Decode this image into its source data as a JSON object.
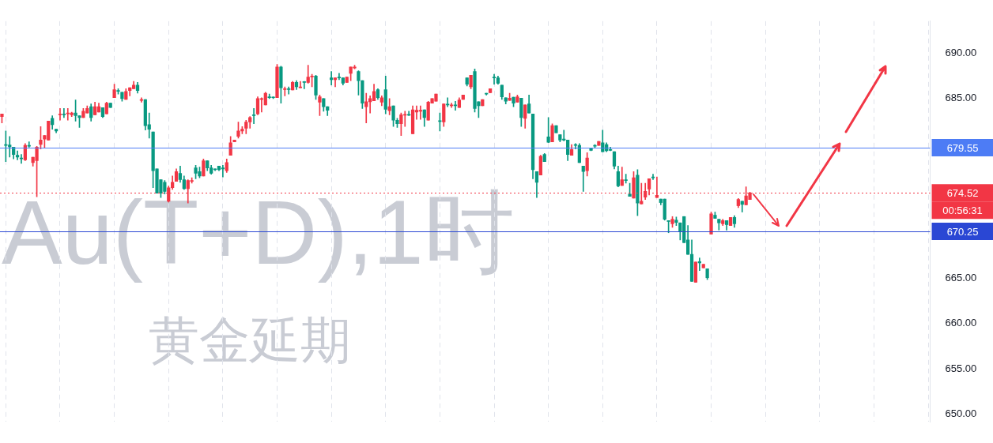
{
  "chart_data": {
    "type": "candlestick",
    "title": "Au(T+D),1时",
    "subtitle": "黄金延期",
    "categories": [
      null,
      null,
      null,
      null,
      null,
      null,
      null,
      null,
      null,
      null,
      null,
      null,
      null,
      null,
      null,
      null,
      null,
      null,
      null,
      null,
      null,
      null,
      null,
      null,
      null,
      null,
      null,
      null,
      null,
      null,
      null,
      null,
      null,
      null,
      null,
      null,
      null,
      null,
      null,
      null,
      null,
      null,
      null,
      null,
      null,
      null,
      null,
      null,
      null,
      null,
      null,
      null,
      null,
      null,
      null,
      null,
      null,
      null,
      null,
      null,
      null,
      null,
      null,
      null,
      null,
      null,
      null,
      null,
      null,
      null,
      null,
      null,
      null,
      null,
      null,
      null,
      null,
      null,
      null,
      null,
      null,
      null,
      null,
      null,
      null,
      null,
      null,
      null,
      null,
      null,
      null,
      null,
      null,
      null,
      null,
      null,
      null,
      null,
      null,
      null,
      null,
      null,
      null,
      null,
      null,
      null,
      null,
      null,
      null,
      null,
      null,
      null,
      null,
      null,
      null,
      null,
      null,
      null,
      null,
      null,
      null,
      null,
      null,
      null,
      null,
      null,
      null,
      null,
      null,
      null,
      null,
      null,
      null,
      null,
      null,
      null,
      null,
      null,
      null,
      null,
      null,
      null,
      null,
      null,
      null,
      null,
      null,
      null,
      null,
      null,
      null,
      null,
      null,
      null,
      null,
      null,
      null,
      null,
      null,
      null,
      null,
      null,
      null,
      null,
      null,
      null,
      null,
      null,
      null,
      null,
      null,
      null,
      null,
      null,
      null,
      null,
      null,
      null,
      null,
      null,
      null,
      null,
      null,
      null,
      null,
      null,
      null,
      null,
      null,
      null,
      null,
      null,
      null,
      null,
      null,
      null,
      null,
      null,
      null,
      null,
      null,
      null,
      null,
      null,
      null,
      null,
      null,
      null,
      null,
      null,
      null,
      null,
      null,
      null,
      null,
      null,
      null,
      null,
      null,
      null,
      null,
      null,
      null,
      null,
      null,
      null,
      null,
      null,
      null,
      null,
      null,
      null,
      null,
      null,
      null,
      null,
      null,
      null,
      null,
      null
    ],
    "ohlc": [
      [
        683.0,
        683.3,
        682.3,
        683.3
      ],
      [
        679.9,
        681.4,
        678.0,
        679.8
      ],
      [
        679.85,
        680.8,
        678.5,
        679.65
      ],
      [
        679.6,
        679.6,
        678.3,
        678.8
      ],
      [
        678.7,
        679.2,
        678.2,
        678.5
      ],
      [
        678.4,
        678.8,
        677.8,
        678.3
      ],
      [
        678.2,
        680.0,
        678.1,
        679.8
      ],
      [
        679.8,
        680.2,
        679.6,
        679.7
      ],
      [
        677.9,
        678.5,
        677.5,
        678.5
      ],
      [
        678.1,
        679.7,
        674.1,
        679.6
      ],
      [
        679.9,
        681.9,
        679.4,
        680.4
      ],
      [
        680.5,
        680.9,
        679.5,
        680.9
      ],
      [
        680.4,
        682.5,
        680.4,
        682.5
      ],
      [
        682.8,
        683.1,
        681.6,
        682.1
      ],
      [
        681.6,
        681.6,
        681.2,
        681.4
      ],
      [
        683.2,
        683.9,
        682.6,
        683.3
      ],
      [
        683.3,
        683.9,
        682.9,
        683.2
      ],
      [
        683.3,
        683.9,
        682.6,
        683.4
      ],
      [
        683.2,
        683.5,
        683.0,
        683.4
      ],
      [
        683.4,
        684.85,
        682.5,
        683.1
      ],
      [
        683.1,
        683.1,
        681.8,
        682.9
      ],
      [
        682.9,
        683.9,
        682.9,
        683.6
      ],
      [
        683.4,
        684.2,
        683.4,
        683.9
      ],
      [
        684.1,
        684.4,
        682.5,
        682.9
      ],
      [
        683.2,
        684.6,
        683.2,
        684.1
      ],
      [
        683.5,
        684.5,
        683.5,
        684.1
      ],
      [
        684.0,
        684.0,
        682.9,
        683.0
      ],
      [
        683.3,
        684.6,
        683.3,
        684.5
      ],
      [
        684.5,
        684.5,
        684.0,
        684.0
      ],
      [
        685.1,
        686.6,
        685.1,
        686.0
      ],
      [
        685.9,
        686.1,
        685.5,
        685.8
      ],
      [
        685.7,
        685.7,
        684.7,
        685.0
      ],
      [
        684.9,
        686.1,
        684.9,
        685.8
      ],
      [
        685.9,
        686.2,
        685.3,
        686.2
      ],
      [
        686.1,
        686.9,
        686.1,
        686.5
      ],
      [
        686.5,
        686.8,
        685.6,
        685.9
      ],
      [
        684.8,
        685.1,
        684.6,
        684.9
      ],
      [
        684.9,
        684.9,
        681.5,
        682.0
      ],
      [
        682.1,
        683.4,
        680.6,
        681.6
      ],
      [
        681.3,
        681.3,
        675.1,
        677.0
      ],
      [
        677.2,
        677.2,
        674.5,
        674.5
      ],
      [
        676.0,
        676.0,
        674.0,
        674.5
      ],
      [
        675.7,
        675.9,
        674.4,
        674.7
      ],
      [
        673.6,
        675.3,
        673.5,
        675.1
      ],
      [
        675.1,
        676.4,
        674.9,
        675.7
      ],
      [
        675.8,
        677.2,
        675.8,
        676.9
      ],
      [
        676.7,
        677.5,
        675.7,
        676.0
      ],
      [
        676.0,
        676.4,
        674.9,
        675.0
      ],
      [
        675.0,
        676.0,
        673.4,
        675.9
      ],
      [
        675.8,
        676.2,
        675.6,
        675.9
      ],
      [
        677.3,
        677.6,
        676.1,
        676.7
      ],
      [
        676.9,
        677.4,
        676.2,
        676.4
      ],
      [
        676.4,
        678.3,
        676.4,
        678.1
      ],
      [
        678.1,
        678.1,
        677.0,
        677.3
      ],
      [
        677.3,
        677.6,
        676.6,
        676.7
      ],
      [
        677.2,
        677.2,
        677.0,
        677.1
      ],
      [
        677.5,
        677.5,
        677.0,
        677.1
      ],
      [
        677.3,
        677.6,
        676.3,
        677.2
      ],
      [
        677.0,
        678.3,
        676.8,
        677.9
      ],
      [
        678.7,
        680.8,
        678.7,
        680.1
      ],
      [
        680.2,
        680.4,
        680.2,
        680.4
      ],
      [
        680.8,
        682.4,
        680.6,
        681.4
      ],
      [
        681.4,
        681.9,
        681.1,
        681.6
      ],
      [
        681.7,
        682.6,
        681.1,
        682.4
      ],
      [
        682.4,
        683.0,
        681.7,
        682.9
      ],
      [
        683.2,
        683.9,
        682.2,
        683.1
      ],
      [
        683.3,
        685.2,
        683.2,
        685.0
      ],
      [
        684.9,
        685.1,
        683.5,
        685.0
      ],
      [
        684.3,
        685.7,
        684.3,
        685.6
      ],
      [
        685.2,
        685.5,
        685.0,
        685.1
      ],
      [
        685.15,
        685.2,
        685.0,
        685.1
      ],
      [
        685.1,
        688.8,
        685.1,
        688.5
      ],
      [
        688.5,
        688.6,
        684.5,
        686.2
      ],
      [
        686.0,
        686.3,
        685.3,
        686.1
      ],
      [
        686.1,
        686.3,
        685.5,
        686.0
      ],
      [
        685.95,
        686.9,
        685.95,
        686.8
      ],
      [
        686.8,
        687.0,
        686.0,
        686.3
      ],
      [
        686.2,
        686.9,
        686.2,
        686.3
      ],
      [
        686.85,
        686.9,
        686.1,
        686.8
      ],
      [
        686.8,
        688.7,
        686.7,
        687.4
      ],
      [
        687.4,
        687.7,
        686.3,
        687.5
      ],
      [
        687.5,
        687.6,
        684.9,
        685.4
      ],
      [
        684.6,
        685.4,
        683.1,
        685.2
      ],
      [
        685.0,
        685.0,
        683.6,
        684.1
      ],
      [
        684.1,
        684.1,
        683.1,
        683.7
      ],
      [
        687.3,
        688.0,
        686.5,
        687.1
      ],
      [
        687.1,
        687.3,
        686.3,
        687.3
      ],
      [
        687.4,
        687.8,
        687.1,
        687.3
      ],
      [
        687.3,
        687.3,
        686.5,
        686.7
      ],
      [
        686.8,
        687.4,
        686.8,
        687.4
      ],
      [
        687.8,
        688.5,
        687.0,
        688.5
      ],
      [
        688.4,
        688.7,
        688.3,
        688.5
      ],
      [
        688.0,
        688.1,
        685.4,
        687.0
      ],
      [
        687.0,
        687.0,
        683.9,
        684.5
      ],
      [
        684.1,
        685.6,
        682.3,
        684.65
      ],
      [
        684.65,
        685.3,
        683.4,
        685.0
      ],
      [
        684.75,
        686.6,
        684.75,
        685.8
      ],
      [
        686.0,
        686.1,
        684.9,
        685.1
      ],
      [
        684.6,
        685.3,
        684.2,
        685.1
      ],
      [
        686.0,
        687.5,
        683.3,
        683.8
      ],
      [
        683.65,
        685.0,
        683.2,
        684.1
      ],
      [
        684.2,
        684.2,
        681.9,
        682.6
      ],
      [
        682.6,
        682.8,
        681.8,
        682.2
      ],
      [
        682.2,
        683.4,
        680.9,
        683.2
      ],
      [
        683.15,
        683.6,
        681.9,
        683.25
      ],
      [
        683.25,
        683.6,
        683.1,
        683.15
      ],
      [
        681.1,
        684.2,
        681.1,
        683.75
      ],
      [
        683.5,
        684.2,
        682.7,
        683.7
      ],
      [
        683.6,
        684.2,
        682.7,
        683.7
      ],
      [
        683.75,
        683.75,
        681.9,
        682.9
      ],
      [
        682.6,
        684.7,
        682.6,
        684.6
      ],
      [
        684.5,
        685.0,
        684.5,
        685.0
      ],
      [
        684.7,
        685.5,
        684.7,
        685.5
      ],
      [
        682.55,
        683.4,
        681.4,
        682.45
      ],
      [
        682.4,
        684.4,
        681.9,
        684.4
      ],
      [
        684.35,
        685.1,
        684.1,
        684.3
      ],
      [
        684.2,
        684.5,
        684.0,
        684.3
      ],
      [
        684.3,
        684.7,
        683.7,
        684.2
      ],
      [
        684.0,
        685.1,
        684.0,
        684.85
      ],
      [
        684.9,
        685.4,
        684.9,
        685.4
      ],
      [
        687.3,
        687.3,
        686.4,
        686.6
      ],
      [
        686.3,
        687.6,
        686.1,
        687.6
      ],
      [
        688.0,
        688.3,
        683.5,
        683.9
      ],
      [
        684.65,
        684.65,
        682.9,
        684.2
      ],
      [
        684.2,
        684.9,
        684.2,
        684.9
      ],
      [
        685.6,
        685.6,
        685.4,
        685.5
      ],
      [
        685.65,
        686.1,
        685.65,
        686.1
      ],
      [
        687.35,
        687.7,
        686.6,
        687.3
      ],
      [
        687.3,
        687.5,
        686.6,
        686.7
      ],
      [
        686.5,
        686.5,
        684.9,
        685.2
      ],
      [
        685.1,
        685.1,
        684.4,
        684.7
      ],
      [
        684.8,
        685.6,
        684.8,
        685.05
      ],
      [
        685.15,
        685.15,
        684.1,
        684.5
      ],
      [
        684.6,
        685.4,
        684.6,
        685.2
      ],
      [
        685.05,
        685.05,
        681.9,
        682.9
      ],
      [
        682.8,
        684.3,
        681.7,
        684.3
      ],
      [
        684.4,
        685.4,
        683.4,
        683.4
      ],
      [
        683.3,
        683.3,
        676.1,
        677.1
      ],
      [
        676.9,
        676.9,
        674.0,
        675.7
      ],
      [
        676.5,
        678.7,
        676.5,
        678.6
      ],
      [
        678.8,
        678.9,
        678.0,
        678.0
      ],
      [
        680.75,
        682.9,
        680.1,
        680.15
      ],
      [
        680.2,
        682.2,
        680.2,
        682.0
      ],
      [
        682.0,
        682.0,
        681.2,
        681.2
      ],
      [
        681.0,
        681.0,
        680.2,
        680.4
      ],
      [
        680.5,
        681.5,
        680.3,
        680.4
      ],
      [
        680.4,
        680.4,
        678.1,
        678.8
      ],
      [
        678.7,
        679.9,
        678.7,
        679.35
      ],
      [
        679.9,
        680.0,
        679.4,
        679.8
      ],
      [
        679.8,
        680.0,
        677.9,
        677.9
      ],
      [
        677.5,
        677.5,
        674.7,
        676.9
      ],
      [
        677.0,
        679.0,
        676.4,
        678.4
      ],
      [
        679.45,
        679.5,
        679.2,
        679.25
      ],
      [
        679.8,
        679.9,
        679.5,
        679.7
      ],
      [
        679.8,
        680.25,
        679.8,
        680.25
      ],
      [
        680.1,
        681.5,
        679.1,
        679.1
      ],
      [
        679.9,
        680.1,
        679.1,
        679.2
      ],
      [
        679.35,
        679.6,
        679.2,
        679.25
      ],
      [
        679.1,
        679.1,
        677.2,
        677.5
      ],
      [
        676.9,
        677.5,
        675.2,
        675.3
      ],
      [
        675.35,
        677.4,
        675.35,
        676.0
      ],
      [
        676.0,
        676.6,
        675.6,
        675.9
      ],
      [
        674.4,
        675.6,
        674.15,
        674.15
      ],
      [
        673.95,
        676.9,
        673.95,
        676.2
      ],
      [
        676.5,
        677.1,
        672.0,
        673.4
      ],
      [
        673.3,
        675.6,
        673.3,
        673.6
      ],
      [
        674.05,
        675.6,
        673.8,
        674.7
      ],
      [
        674.95,
        676.1,
        674.3,
        676.1
      ],
      [
        676.3,
        676.6,
        676.0,
        676.2
      ],
      [
        674.0,
        676.3,
        674.0,
        674.25
      ],
      [
        673.85,
        673.85,
        673.2,
        673.45
      ],
      [
        673.85,
        673.85,
        671.5,
        671.6
      ],
      [
        671.45,
        671.45,
        670.1,
        671.35
      ],
      [
        671.1,
        671.9,
        670.7,
        671.6
      ],
      [
        671.5,
        671.85,
        670.9,
        671.25
      ],
      [
        671.2,
        671.2,
        669.3,
        670.2
      ],
      [
        671.9,
        671.9,
        669.0,
        669.0
      ],
      [
        669.3,
        670.9,
        667.7,
        667.7
      ],
      [
        667.7,
        669.3,
        664.7,
        664.7
      ],
      [
        664.6,
        666.85,
        664.6,
        666.85
      ],
      [
        666.9,
        667.3,
        665.9,
        666.75
      ],
      [
        666.2,
        666.6,
        666.2,
        666.6
      ],
      [
        666.1,
        666.1,
        664.9,
        665.1
      ],
      [
        669.95,
        672.4,
        669.95,
        672.2
      ],
      [
        672.05,
        672.4,
        671.7,
        671.7
      ],
      [
        671.6,
        671.6,
        670.4,
        671.2
      ],
      [
        671.1,
        671.6,
        670.9,
        671.45
      ],
      [
        671.45,
        671.45,
        670.4,
        671.0
      ],
      [
        670.9,
        671.8,
        670.9,
        671.8
      ],
      [
        671.8,
        672.0,
        670.7,
        671.1
      ],
      [
        673.1,
        673.9,
        672.9,
        673.8
      ],
      [
        673.6,
        673.6,
        672.4,
        673.25
      ],
      [
        673.2,
        675.2,
        673.2,
        674.2
      ],
      [
        673.8,
        674.6,
        673.8,
        674.52
      ],
      null,
      null,
      null,
      null,
      null,
      null,
      null,
      null,
      null,
      null,
      null,
      null,
      null,
      null,
      null,
      null,
      null,
      null,
      null,
      null,
      null,
      null,
      null,
      null,
      null,
      null,
      null,
      null,
      null,
      null,
      null,
      null,
      null,
      null,
      null,
      null,
      null,
      null,
      null,
      null,
      null,
      null,
      null,
      null,
      null,
      null
    ],
    "colors": [
      "#f23645",
      "#089981",
      "#089981",
      "#089981",
      "#089981",
      "#089981",
      "#f23645",
      "#089981",
      "#f23645",
      "#f23645",
      "#f23645",
      "#f23645",
      "#f23645",
      "#089981",
      "#089981",
      "#f23645",
      "#089981",
      "#f23645",
      "#f23645",
      "#089981",
      "#089981",
      "#f23645",
      "#f23645",
      "#089981",
      "#f23645",
      "#f23645",
      "#089981",
      "#f23645",
      "#089981",
      "#f23645",
      "#089981",
      "#089981",
      "#f23645",
      "#f23645",
      "#f23645",
      "#089981",
      "#f23645",
      "#089981",
      "#089981",
      "#089981",
      "#089981",
      "#089981",
      "#089981",
      "#f23645",
      "#f23645",
      "#f23645",
      "#089981",
      "#089981",
      "#f23645",
      "#f23645",
      "#089981",
      "#089981",
      "#f23645",
      "#089981",
      "#089981",
      "#089981",
      "#089981",
      "#089981",
      "#f23645",
      "#f23645",
      "#f23645",
      "#f23645",
      "#f23645",
      "#f23645",
      "#f23645",
      "#089981",
      "#f23645",
      "#f23645",
      "#f23645",
      "#089981",
      "#089981",
      "#f23645",
      "#089981",
      "#f23645",
      "#089981",
      "#f23645",
      "#089981",
      "#f23645",
      "#089981",
      "#f23645",
      "#f23645",
      "#089981",
      "#f23645",
      "#089981",
      "#089981",
      "#089981",
      "#f23645",
      "#089981",
      "#089981",
      "#f23645",
      "#f23645",
      "#f23645",
      "#089981",
      "#089981",
      "#f23645",
      "#f23645",
      "#f23645",
      "#089981",
      "#f23645",
      "#089981",
      "#f23645",
      "#089981",
      "#089981",
      "#f23645",
      "#f23645",
      "#089981",
      "#f23645",
      "#f23645",
      "#f23645",
      "#089981",
      "#f23645",
      "#f23645",
      "#f23645",
      "#089981",
      "#f23645",
      "#089981",
      "#f23645",
      "#089981",
      "#f23645",
      "#f23645",
      "#089981",
      "#f23645",
      "#089981",
      "#089981",
      "#f23645",
      "#089981",
      "#f23645",
      "#089981",
      "#089981",
      "#089981",
      "#089981",
      "#f23645",
      "#089981",
      "#f23645",
      "#089981",
      "#f23645",
      "#089981",
      "#089981",
      "#089981",
      "#f23645",
      "#089981",
      "#089981",
      "#f23645",
      "#089981",
      "#089981",
      "#089981",
      "#089981",
      "#f23645",
      "#089981",
      "#089981",
      "#089981",
      "#f23645",
      "#089981",
      "#089981",
      "#f23645",
      "#089981",
      "#089981",
      "#089981",
      "#089981",
      "#089981",
      "#f23645",
      "#089981",
      "#089981",
      "#f23645",
      "#089981",
      "#f23645",
      "#f23645",
      "#f23645",
      "#089981",
      "#f23645",
      "#089981",
      "#089981",
      "#089981",
      "#f23645",
      "#089981",
      "#089981",
      "#089981",
      "#089981",
      "#089981",
      "#f23645",
      "#089981",
      "#f23645",
      "#089981",
      "#f23645",
      "#089981",
      "#089981",
      "#f23645",
      "#089981",
      "#f23645",
      "#089981",
      "#f23645",
      "#089981",
      "#f23645",
      "#f23645",
      null,
      null,
      null,
      null,
      null,
      null,
      null,
      null,
      null,
      null,
      null,
      null,
      null,
      null,
      null,
      null,
      null,
      null,
      null,
      null,
      null,
      null,
      null,
      null,
      null,
      null,
      null,
      null,
      null,
      null,
      null,
      null,
      null,
      null,
      null,
      null,
      null,
      null,
      null,
      null,
      null,
      null,
      null,
      null,
      null,
      null
    ],
    "ylim": [
      649.1,
      693.6
    ],
    "yticks": [
      {
        "value": 650,
        "label": "650.00"
      },
      {
        "value": 655,
        "label": "655.00"
      },
      {
        "value": 660,
        "label": "660.00"
      },
      {
        "value": 665,
        "label": "665.00"
      },
      {
        "value": 685,
        "label": "685.00"
      },
      {
        "value": 690,
        "label": "690.00"
      }
    ],
    "ref_lines": [
      {
        "axis": "y",
        "value": 679.55,
        "label": "679.55",
        "color": "#4d7cf5"
      },
      {
        "axis": "y",
        "value": 670.25,
        "label": "670.25",
        "color": "#2a47d4"
      },
      {
        "axis": "y",
        "value": 674.52,
        "label": "674.52",
        "color": "#f23645",
        "line_style": "dotted"
      }
    ],
    "annotations": [
      "00:56:31"
    ],
    "grid": "x",
    "tick_labels": "y"
  }
}
